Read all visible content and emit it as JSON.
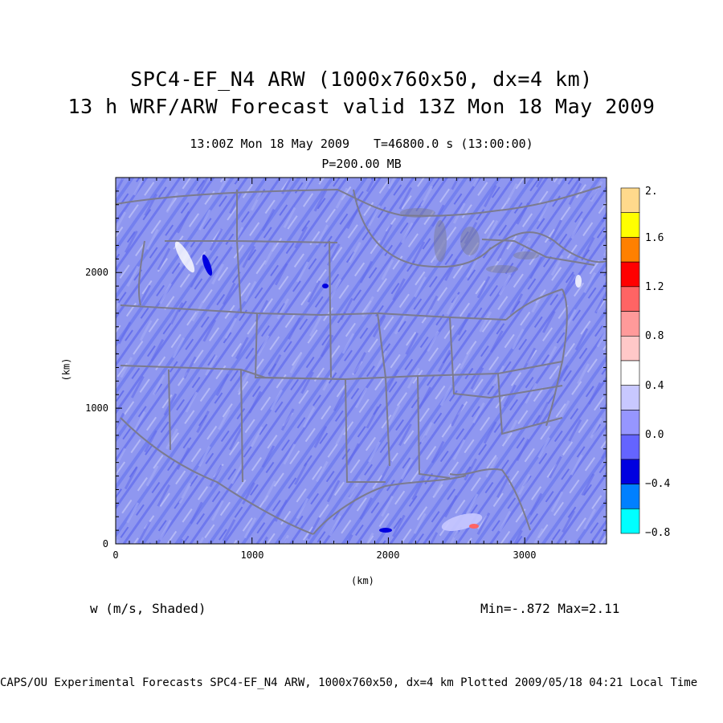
{
  "header": {
    "title_line1": "SPC4-EF_N4 ARW (1000x760x50, dx=4 km)",
    "title_line2": "13 h WRF/ARW Forecast valid 13Z Mon 18 May 2009",
    "time_label": "13:00Z Mon 18 May 2009",
    "model_time": "T=46800.0 s (13:00:00)",
    "level": "P=200.00 MB"
  },
  "axes": {
    "x_label": "(km)",
    "y_label": "(km)",
    "x_ticks": [
      "0",
      "1000",
      "2000",
      "3000"
    ],
    "y_ticks": [
      "0",
      "1000",
      "2000"
    ],
    "x_range_km": [
      0,
      3600
    ],
    "y_range_km": [
      0,
      2700
    ]
  },
  "field": {
    "variable_label": "w (m/s, Shaded)",
    "min_max": "Min=-.872 Max=2.11",
    "dominant_color": "#8f97f0"
  },
  "colorbar": {
    "labels": [
      "2.",
      "1.6",
      "1.2",
      "0.8",
      "0.4",
      "0.0",
      "−0.4",
      "−0.8"
    ],
    "colors_top_to_bottom": [
      "#ffd98c",
      "#ffff00",
      "#ff8000",
      "#ff0000",
      "#ff6464",
      "#ff9a9a",
      "#ffc8c8",
      "#ffffff",
      "#c8c8ff",
      "#9696ff",
      "#6464ff",
      "#0000e0",
      "#0080ff",
      "#00ffff"
    ]
  },
  "footer": {
    "credit": "CAPS/OU Experimental Forecasts  SPC4-EF_N4 ARW, 1000x760x50, dx=4 km  Plotted 2009/05/18 04:21 Local Time"
  }
}
